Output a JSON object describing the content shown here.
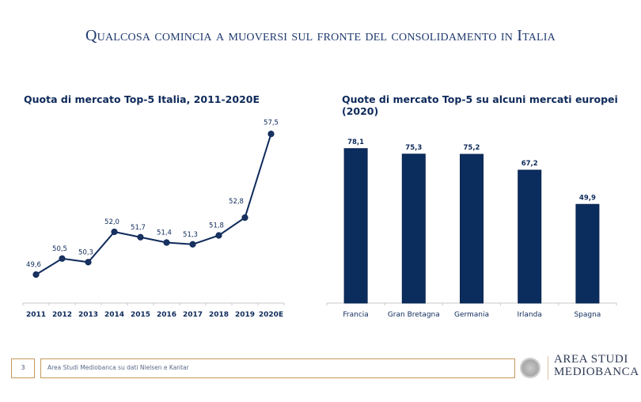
{
  "slide": {
    "title": "Qualcosa comincia a muoversi sul fronte del consolidamento in Italia"
  },
  "colors": {
    "navy": "#0e2a5a",
    "bar": "#0b2d5e",
    "axis": "#c8c8c8",
    "gold": "#c49a5a"
  },
  "chart_data": [
    {
      "type": "line",
      "title": "Quota di mercato Top-5 Italia, 2011-2020E",
      "xlabel": "",
      "ylabel": "",
      "categories": [
        "2011",
        "2012",
        "2013",
        "2014",
        "2015",
        "2016",
        "2017",
        "2018",
        "2019",
        "2020E"
      ],
      "values": [
        49.6,
        50.5,
        50.3,
        52.0,
        51.7,
        51.4,
        51.3,
        51.8,
        52.8,
        57.5
      ],
      "data_labels": [
        "49,6",
        "50,5",
        "50,3",
        "52,0",
        "51,7",
        "51,4",
        "51,3",
        "51,8",
        "52,8",
        "57,5"
      ],
      "ylim": [
        48.0,
        58.0
      ],
      "grid": false,
      "legend": "none"
    },
    {
      "type": "bar",
      "title": "Quote di mercato Top-5 su alcuni mercati europei (2020)",
      "xlabel": "",
      "ylabel": "",
      "categories": [
        "Francia",
        "Gran Bretagna",
        "Germania",
        "Irlanda",
        "Spagna"
      ],
      "values": [
        78.1,
        75.3,
        75.2,
        67.2,
        49.9
      ],
      "data_labels": [
        "78,1",
        "75,3",
        "75,2",
        "67,2",
        "49,9"
      ],
      "ylim": [
        0,
        80
      ],
      "grid": false,
      "legend": "none"
    }
  ],
  "footer": {
    "page_number": "3",
    "source": "Area Studi Mediobanca su dati Nielsen e Kantar",
    "logo_line1": "AREA STUDI",
    "logo_line2": "MEDIOBANCA",
    "logo_icon": "seal-icon"
  }
}
